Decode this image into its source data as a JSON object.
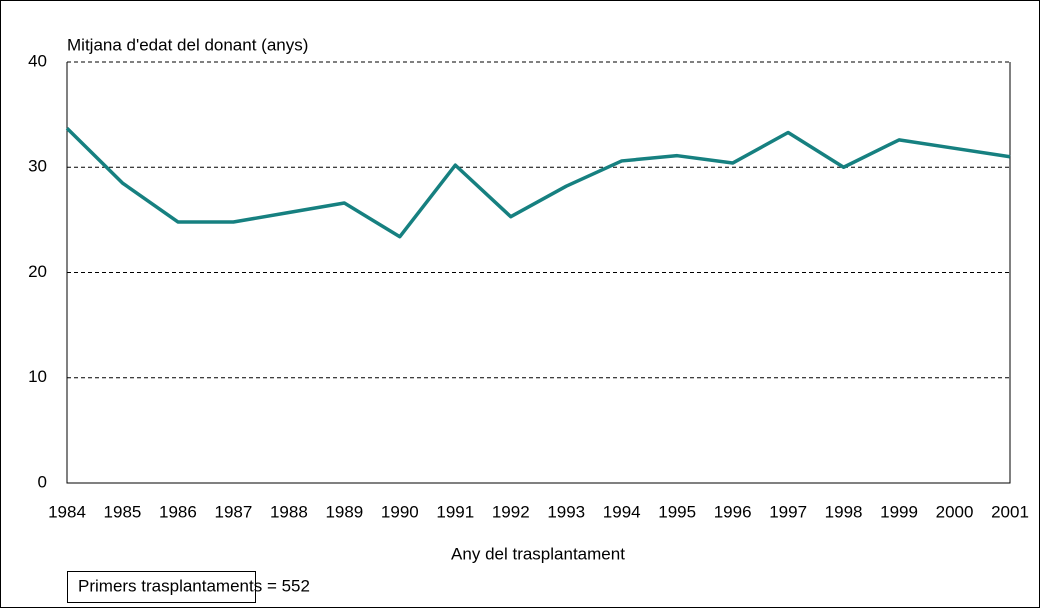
{
  "chart_data": {
    "type": "line",
    "y_label": "Mitjana d'edat del donant (anys)",
    "x_label": "Any del trasplantament",
    "annotation": "Primers trasplantaments = 552",
    "categories": [
      "1984",
      "1985",
      "1986",
      "1987",
      "1988",
      "1989",
      "1990",
      "1991",
      "1992",
      "1993",
      "1994",
      "1995",
      "1996",
      "1997",
      "1998",
      "1999",
      "2000",
      "2001"
    ],
    "series": [
      {
        "name": "Mitjana d'edat",
        "color": "#168080",
        "values": [
          33.7,
          28.5,
          24.8,
          24.8,
          25.7,
          26.6,
          23.4,
          30.2,
          25.3,
          28.2,
          30.6,
          31.1,
          30.4,
          33.3,
          30.0,
          32.6,
          31.8,
          31.0
        ]
      }
    ],
    "ylim": [
      0,
      40
    ],
    "yticks": [
      0,
      10,
      20,
      30,
      40
    ],
    "grid": true
  }
}
